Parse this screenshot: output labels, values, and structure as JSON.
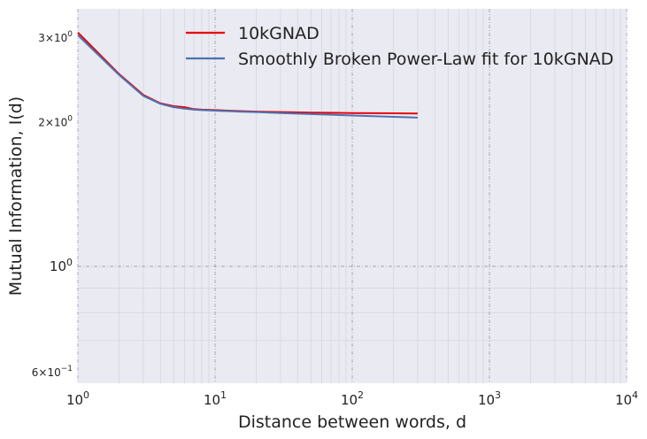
{
  "chart_data": {
    "type": "line",
    "title": "",
    "xlabel": "Distance between words, d",
    "ylabel": "Mutual Information, I(d)",
    "xscale": "log",
    "yscale": "log",
    "xlim": [
      1,
      10000
    ],
    "ylim": [
      0.57,
      3.45
    ],
    "grid": true,
    "legend_position": "top-right",
    "x_ticks": [
      {
        "value": 1,
        "base": "10",
        "exp": "0"
      },
      {
        "value": 10,
        "base": "10",
        "exp": "1"
      },
      {
        "value": 100,
        "base": "10",
        "exp": "2"
      },
      {
        "value": 1000,
        "base": "10",
        "exp": "3"
      },
      {
        "value": 10000,
        "base": "10",
        "exp": "4"
      }
    ],
    "y_ticks": [
      {
        "value": 0.6,
        "coef": "6×10",
        "exp": "−1",
        "small": true
      },
      {
        "value": 1,
        "coef": "10",
        "exp": "0",
        "small": false
      },
      {
        "value": 2,
        "coef": "2×10",
        "exp": "0",
        "small": true
      },
      {
        "value": 3,
        "coef": "3×10",
        "exp": "0",
        "small": true
      }
    ],
    "series": [
      {
        "name": "10kGNAD",
        "color": "#e8000b",
        "x": [
          1,
          2,
          3,
          4,
          5,
          6,
          7,
          8,
          10,
          15,
          20,
          30,
          50,
          100,
          200,
          300
        ],
        "y": [
          3.08,
          2.52,
          2.28,
          2.19,
          2.16,
          2.15,
          2.13,
          2.125,
          2.12,
          2.11,
          2.105,
          2.1,
          2.095,
          2.09,
          2.088,
          2.086
        ]
      },
      {
        "name": "Smoothly Broken Power-Law fit for 10kGNAD",
        "color": "#4c72b0",
        "x": [
          1,
          2,
          3,
          4,
          5,
          6,
          7,
          8,
          10,
          15,
          20,
          30,
          50,
          100,
          200,
          300
        ],
        "y": [
          3.04,
          2.51,
          2.27,
          2.185,
          2.15,
          2.135,
          2.125,
          2.12,
          2.115,
          2.105,
          2.1,
          2.09,
          2.08,
          2.066,
          2.053,
          2.045
        ]
      }
    ]
  }
}
